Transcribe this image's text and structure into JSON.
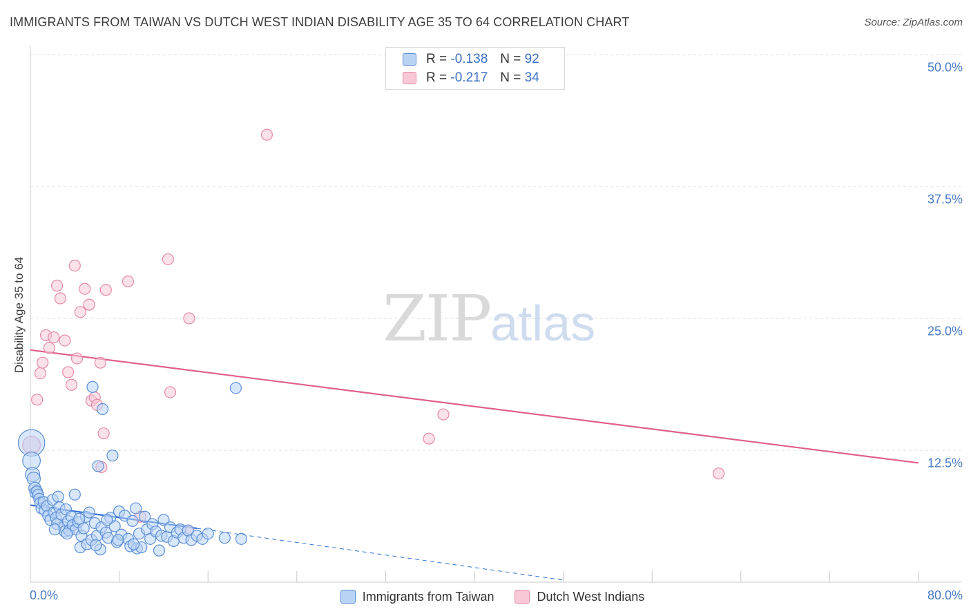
{
  "header": {
    "title": "IMMIGRANTS FROM TAIWAN VS DUTCH WEST INDIAN DISABILITY AGE 35 TO 64 CORRELATION CHART",
    "source": "Source: ZipAtlas.com"
  },
  "legend_top": {
    "rows": [
      {
        "r_label": "R =",
        "r_value": "-0.138",
        "n_label": "N =",
        "n_value": "92"
      },
      {
        "r_label": "R =",
        "r_value": "-0.217",
        "n_label": "N =",
        "n_value": "34"
      }
    ]
  },
  "legend_bottom": {
    "taiwan": "Immigrants from Taiwan",
    "dutch": "Dutch West Indians"
  },
  "watermark": {
    "zip": "ZIP",
    "atlas": "atlas"
  },
  "colors": {
    "taiwan_fill": "#b9d3f5",
    "taiwan_stroke": "#5b8fd6",
    "taiwan_line": "#2f6fcf",
    "dutch_fill": "#f8c8d6",
    "dutch_stroke": "#e48aa8",
    "dutch_line": "#e0608c",
    "grid": "#dedede",
    "axis_text": "#4a7cc7"
  },
  "chart_data": {
    "type": "scatter",
    "title": "IMMIGRANTS FROM TAIWAN VS DUTCH WEST INDIAN DISABILITY AGE 35 TO 64 CORRELATION CHART",
    "xlabel": "",
    "ylabel": "Disability Age 35 to 64",
    "xlim": [
      0,
      80
    ],
    "ylim": [
      0,
      50
    ],
    "x_tick_labels": [
      "0.0%",
      "80.0%"
    ],
    "y_ticks": [
      12.5,
      25.0,
      37.5,
      50.0
    ],
    "y_tick_labels": [
      "12.5%",
      "25.0%",
      "37.5%",
      "50.0%"
    ],
    "grid": true,
    "series": [
      {
        "name": "Immigrants from Taiwan",
        "R": -0.138,
        "N": 92,
        "trend": {
          "x0": 0,
          "y0": 7.3,
          "x1": 15,
          "y1": 5.1,
          "dash_x1": 48,
          "dash_y1": 0.2
        },
        "points": [
          {
            "x": 0.1,
            "y": 13.2,
            "s": 2.4
          },
          {
            "x": 0.1,
            "y": 11.5,
            "s": 1.6
          },
          {
            "x": 0.2,
            "y": 10.2,
            "s": 1.3
          },
          {
            "x": 0.3,
            "y": 9.8,
            "s": 1.2
          },
          {
            "x": 0.4,
            "y": 8.9,
            "s": 1.1
          },
          {
            "x": 0.5,
            "y": 8.5,
            "s": 1.1
          },
          {
            "x": 0.6,
            "y": 8.6,
            "s": 1.0
          },
          {
            "x": 0.7,
            "y": 8.3,
            "s": 1.0
          },
          {
            "x": 0.8,
            "y": 7.9,
            "s": 1.0
          },
          {
            "x": 0.9,
            "y": 7.5,
            "s": 1.0
          },
          {
            "x": 1.0,
            "y": 7.0,
            "s": 1.0
          },
          {
            "x": 1.2,
            "y": 7.6,
            "s": 1.0
          },
          {
            "x": 1.3,
            "y": 6.8,
            "s": 1.0
          },
          {
            "x": 1.5,
            "y": 7.2,
            "s": 1.0
          },
          {
            "x": 1.6,
            "y": 6.3,
            "s": 1.0
          },
          {
            "x": 1.8,
            "y": 5.9,
            "s": 1.0
          },
          {
            "x": 2.0,
            "y": 7.8,
            "s": 1.0
          },
          {
            "x": 2.1,
            "y": 6.6,
            "s": 1.0
          },
          {
            "x": 2.3,
            "y": 6.1,
            "s": 1.0
          },
          {
            "x": 2.4,
            "y": 5.5,
            "s": 1.0
          },
          {
            "x": 2.5,
            "y": 8.1,
            "s": 1.0
          },
          {
            "x": 2.6,
            "y": 7.1,
            "s": 1.0
          },
          {
            "x": 2.8,
            "y": 6.4,
            "s": 1.0
          },
          {
            "x": 3.0,
            "y": 5.2,
            "s": 1.0
          },
          {
            "x": 3.1,
            "y": 4.8,
            "s": 1.0
          },
          {
            "x": 3.2,
            "y": 6.9,
            "s": 1.0
          },
          {
            "x": 3.4,
            "y": 5.8,
            "s": 1.0
          },
          {
            "x": 3.5,
            "y": 4.9,
            "s": 1.0
          },
          {
            "x": 3.7,
            "y": 6.2,
            "s": 1.0
          },
          {
            "x": 3.8,
            "y": 5.4,
            "s": 1.0
          },
          {
            "x": 4.0,
            "y": 8.3,
            "s": 1.0
          },
          {
            "x": 4.1,
            "y": 5.0,
            "s": 1.0
          },
          {
            "x": 4.3,
            "y": 5.7,
            "s": 1.0
          },
          {
            "x": 4.5,
            "y": 3.3,
            "s": 1.0
          },
          {
            "x": 4.6,
            "y": 4.4,
            "s": 1.0
          },
          {
            "x": 4.8,
            "y": 5.1,
            "s": 1.0
          },
          {
            "x": 5.0,
            "y": 6.2,
            "s": 1.0
          },
          {
            "x": 5.1,
            "y": 3.6,
            "s": 1.0
          },
          {
            "x": 5.3,
            "y": 6.6,
            "s": 1.0
          },
          {
            "x": 5.5,
            "y": 4.0,
            "s": 1.0
          },
          {
            "x": 5.6,
            "y": 18.5,
            "s": 1.0
          },
          {
            "x": 5.8,
            "y": 5.6,
            "s": 1.0
          },
          {
            "x": 6.0,
            "y": 4.4,
            "s": 1.0
          },
          {
            "x": 6.1,
            "y": 11.0,
            "s": 1.0
          },
          {
            "x": 6.3,
            "y": 3.1,
            "s": 1.0
          },
          {
            "x": 6.4,
            "y": 5.2,
            "s": 1.0
          },
          {
            "x": 6.5,
            "y": 16.4,
            "s": 1.0
          },
          {
            "x": 6.8,
            "y": 4.7,
            "s": 1.0
          },
          {
            "x": 7.0,
            "y": 4.2,
            "s": 1.0
          },
          {
            "x": 7.2,
            "y": 6.1,
            "s": 1.0
          },
          {
            "x": 7.4,
            "y": 12.0,
            "s": 1.0
          },
          {
            "x": 7.6,
            "y": 5.3,
            "s": 1.0
          },
          {
            "x": 7.8,
            "y": 3.8,
            "s": 1.0
          },
          {
            "x": 8.0,
            "y": 6.7,
            "s": 1.0
          },
          {
            "x": 8.2,
            "y": 4.5,
            "s": 1.0
          },
          {
            "x": 8.5,
            "y": 6.3,
            "s": 1.0
          },
          {
            "x": 8.8,
            "y": 4.1,
            "s": 1.0
          },
          {
            "x": 9.0,
            "y": 3.4,
            "s": 1.0
          },
          {
            "x": 9.2,
            "y": 5.8,
            "s": 1.0
          },
          {
            "x": 9.5,
            "y": 7.0,
            "s": 1.0
          },
          {
            "x": 9.6,
            "y": 3.2,
            "s": 1.0
          },
          {
            "x": 9.8,
            "y": 4.6,
            "s": 1.0
          },
          {
            "x": 10.0,
            "y": 3.3,
            "s": 1.0
          },
          {
            "x": 10.3,
            "y": 6.2,
            "s": 1.0
          },
          {
            "x": 10.5,
            "y": 5.0,
            "s": 1.0
          },
          {
            "x": 10.8,
            "y": 4.1,
            "s": 1.0
          },
          {
            "x": 11.0,
            "y": 5.5,
            "s": 1.0
          },
          {
            "x": 11.3,
            "y": 4.8,
            "s": 1.0
          },
          {
            "x": 11.6,
            "y": 3.0,
            "s": 1.0
          },
          {
            "x": 11.8,
            "y": 4.4,
            "s": 1.0
          },
          {
            "x": 12.0,
            "y": 5.9,
            "s": 1.0
          },
          {
            "x": 12.3,
            "y": 4.3,
            "s": 1.0
          },
          {
            "x": 12.6,
            "y": 5.2,
            "s": 1.0
          },
          {
            "x": 12.9,
            "y": 3.9,
            "s": 1.0
          },
          {
            "x": 13.2,
            "y": 4.7,
            "s": 1.0
          },
          {
            "x": 13.5,
            "y": 5.0,
            "s": 1.0
          },
          {
            "x": 13.8,
            "y": 4.2,
            "s": 1.0
          },
          {
            "x": 14.2,
            "y": 4.9,
            "s": 1.0
          },
          {
            "x": 14.5,
            "y": 4.0,
            "s": 1.0
          },
          {
            "x": 15.0,
            "y": 4.4,
            "s": 1.0
          },
          {
            "x": 15.5,
            "y": 4.1,
            "s": 1.0
          },
          {
            "x": 16.0,
            "y": 4.6,
            "s": 1.0
          },
          {
            "x": 17.5,
            "y": 4.2,
            "s": 1.0
          },
          {
            "x": 18.5,
            "y": 18.4,
            "s": 1.0
          },
          {
            "x": 19.0,
            "y": 4.1,
            "s": 1.0
          },
          {
            "x": 2.2,
            "y": 5.0,
            "s": 1.0
          },
          {
            "x": 3.3,
            "y": 4.6,
            "s": 1.0
          },
          {
            "x": 4.4,
            "y": 6.0,
            "s": 1.0
          },
          {
            "x": 5.9,
            "y": 3.5,
            "s": 1.0
          },
          {
            "x": 6.9,
            "y": 5.9,
            "s": 1.0
          },
          {
            "x": 7.9,
            "y": 4.0,
            "s": 1.0
          },
          {
            "x": 9.3,
            "y": 3.6,
            "s": 1.0
          }
        ]
      },
      {
        "name": "Dutch West Indians",
        "R": -0.217,
        "N": 34,
        "trend": {
          "x0": 0,
          "y0": 22.0,
          "x1": 80,
          "y1": 11.3
        },
        "points": [
          {
            "x": 0.1,
            "y": 13.0,
            "s": 1.6
          },
          {
            "x": 0.6,
            "y": 17.3,
            "s": 1.0
          },
          {
            "x": 0.9,
            "y": 19.8,
            "s": 1.0
          },
          {
            "x": 1.1,
            "y": 20.8,
            "s": 1.0
          },
          {
            "x": 1.4,
            "y": 23.4,
            "s": 1.0
          },
          {
            "x": 1.7,
            "y": 22.2,
            "s": 1.0
          },
          {
            "x": 2.1,
            "y": 23.2,
            "s": 1.0
          },
          {
            "x": 2.4,
            "y": 28.1,
            "s": 1.0
          },
          {
            "x": 2.7,
            "y": 26.9,
            "s": 1.0
          },
          {
            "x": 3.1,
            "y": 22.9,
            "s": 1.0
          },
          {
            "x": 3.4,
            "y": 19.9,
            "s": 1.0
          },
          {
            "x": 3.7,
            "y": 18.7,
            "s": 1.0
          },
          {
            "x": 4.0,
            "y": 30.0,
            "s": 1.0
          },
          {
            "x": 4.2,
            "y": 21.2,
            "s": 1.0
          },
          {
            "x": 4.5,
            "y": 25.6,
            "s": 1.0
          },
          {
            "x": 4.9,
            "y": 27.8,
            "s": 1.0
          },
          {
            "x": 5.3,
            "y": 26.3,
            "s": 1.0
          },
          {
            "x": 5.5,
            "y": 17.2,
            "s": 1.0
          },
          {
            "x": 5.8,
            "y": 17.5,
            "s": 1.0
          },
          {
            "x": 6.0,
            "y": 16.8,
            "s": 1.0
          },
          {
            "x": 6.3,
            "y": 20.8,
            "s": 1.0
          },
          {
            "x": 6.6,
            "y": 14.1,
            "s": 1.0
          },
          {
            "x": 6.8,
            "y": 27.7,
            "s": 1.0
          },
          {
            "x": 8.8,
            "y": 28.5,
            "s": 1.0
          },
          {
            "x": 9.9,
            "y": 6.2,
            "s": 1.0
          },
          {
            "x": 12.4,
            "y": 30.6,
            "s": 1.0
          },
          {
            "x": 12.6,
            "y": 18.0,
            "s": 1.0
          },
          {
            "x": 14.3,
            "y": 25.0,
            "s": 1.0
          },
          {
            "x": 21.3,
            "y": 42.4,
            "s": 1.0
          },
          {
            "x": 35.9,
            "y": 13.6,
            "s": 1.0
          },
          {
            "x": 37.2,
            "y": 15.9,
            "s": 1.0
          },
          {
            "x": 62.0,
            "y": 10.3,
            "s": 1.0
          },
          {
            "x": 6.4,
            "y": 10.9,
            "s": 1.0
          },
          {
            "x": 14.2,
            "y": 4.9,
            "s": 1.0
          }
        ]
      }
    ]
  }
}
